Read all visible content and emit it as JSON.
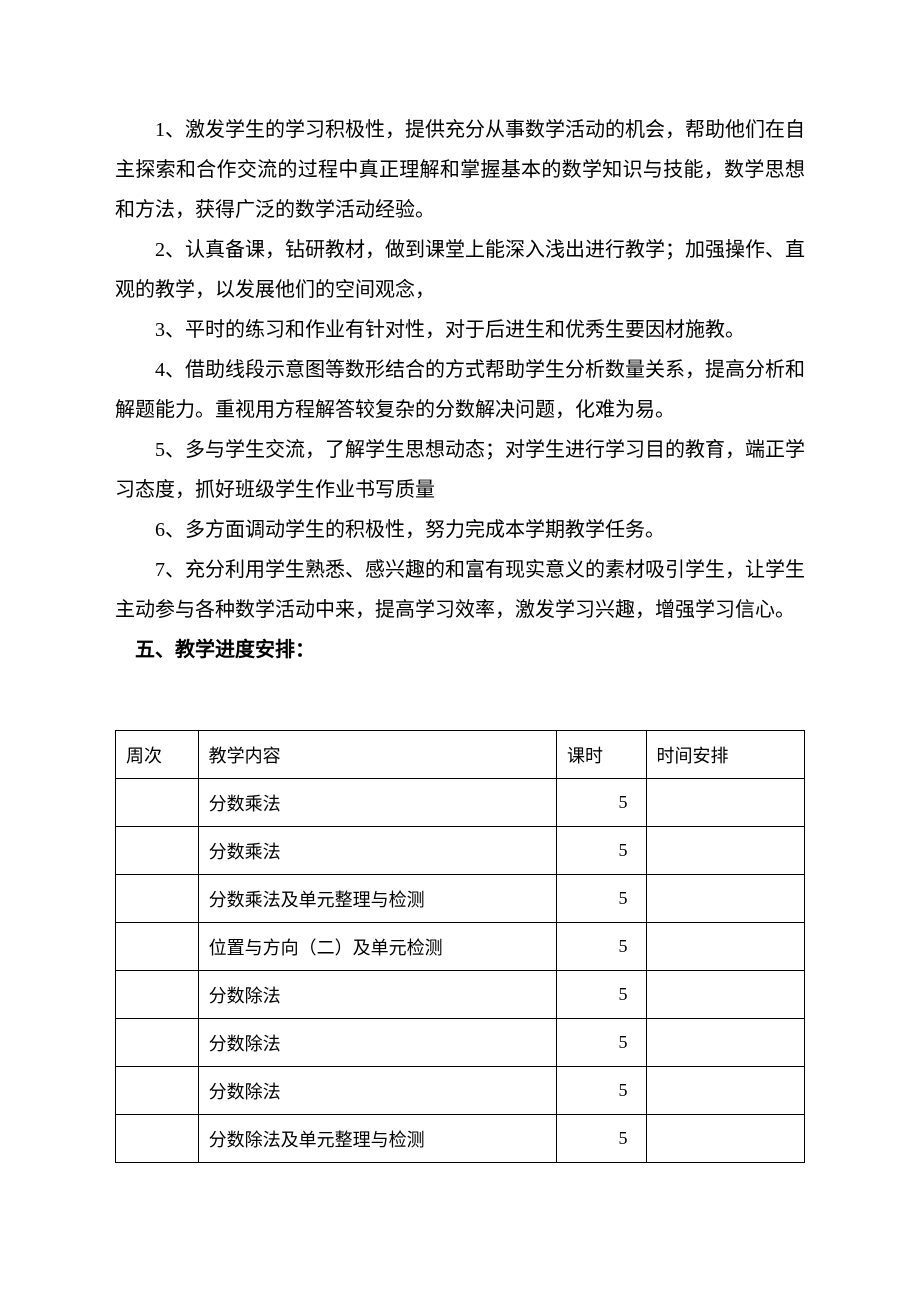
{
  "paragraphs": [
    "1、激发学生的学习积极性，提供充分从事数学活动的机会，帮助他们在自主探索和合作交流的过程中真正理解和掌握基本的数学知识与技能，数学思想和方法，获得广泛的数学活动经验。",
    "2、认真备课，钻研教材，做到课堂上能深入浅出进行教学；加强操作、直观的教学，以发展他们的空间观念，",
    "3、平时的练习和作业有针对性，对于后进生和优秀生要因材施教。",
    "4、借助线段示意图等数形结合的方式帮助学生分析数量关系，提高分析和解题能力。重视用方程解答较复杂的分数解决问题，化难为易。",
    "5、多与学生交流，了解学生思想动态；对学生进行学习目的教育，端正学习态度，抓好班级学生作业书写质量",
    "6、多方面调动学生的积极性，努力完成本学期教学任务。",
    "7、充分利用学生熟悉、感兴趣的和富有现实意义的素材吸引学生，让学生主动参与各种数学活动中来，提高学习效率，激发学习兴趣，增强学习信心。"
  ],
  "heading": "五、教学进度安排：",
  "table": {
    "headers": {
      "week": "周次",
      "content": "教学内容",
      "hours": "课时",
      "time": "时间安排"
    },
    "rows": [
      {
        "week": "",
        "content": "分数乘法",
        "hours": "5",
        "time": ""
      },
      {
        "week": "",
        "content": "分数乘法",
        "hours": "5",
        "time": ""
      },
      {
        "week": "",
        "content": "分数乘法及单元整理与检测",
        "hours": "5",
        "time": ""
      },
      {
        "week": "",
        "content": "位置与方向（二）及单元检测",
        "hours": "5",
        "time": ""
      },
      {
        "week": "",
        "content": "分数除法",
        "hours": "5",
        "time": ""
      },
      {
        "week": "",
        "content": "分数除法",
        "hours": "5",
        "time": ""
      },
      {
        "week": "",
        "content": "分数除法",
        "hours": "5",
        "time": ""
      },
      {
        "week": "",
        "content": "分数除法及单元整理与检测",
        "hours": "5",
        "time": ""
      }
    ]
  },
  "style": {
    "page_bg": "#ffffff",
    "text_color": "#000000",
    "border_color": "#000000",
    "body_fontsize": 20,
    "table_fontsize": 18,
    "line_height": 2.0
  }
}
